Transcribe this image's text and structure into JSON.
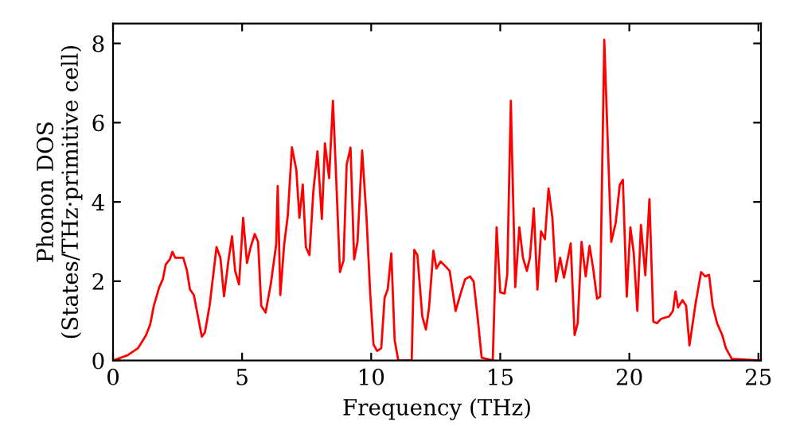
{
  "chart_data": {
    "type": "line",
    "xlabel": "Frequency (THz)",
    "ylabel": "Phonon DOS\n(States/THz·primitive cell)",
    "xlim": [
      0,
      25.1
    ],
    "ylim": [
      0,
      8.5
    ],
    "xticks": [
      0,
      5,
      10,
      15,
      20,
      25
    ],
    "yticks": [
      0,
      2,
      4,
      6,
      8
    ],
    "grid": false,
    "marker": "none",
    "line_style": "solid",
    "series": [
      {
        "color": "#ff0000",
        "x": [
          0,
          0.56,
          0.97,
          1.28,
          1.44,
          1.58,
          1.79,
          1.93,
          2.04,
          2.2,
          2.3,
          2.41,
          2.72,
          2.86,
          2.98,
          3.13,
          3.27,
          3.44,
          3.56,
          3.74,
          4.01,
          4.16,
          4.3,
          4.47,
          4.61,
          4.73,
          4.88,
          5.04,
          5.19,
          5.33,
          5.49,
          5.62,
          5.74,
          5.91,
          6.11,
          6.32,
          6.38,
          6.48,
          6.63,
          6.77,
          6.93,
          7.1,
          7.22,
          7.35,
          7.47,
          7.61,
          7.76,
          7.92,
          8.09,
          8.21,
          8.37,
          8.52,
          8.64,
          8.79,
          8.93,
          9.05,
          9.2,
          9.34,
          9.47,
          9.65,
          9.82,
          9.96,
          10.09,
          10.23,
          10.39,
          10.52,
          10.64,
          10.78,
          10.91,
          11.05,
          11.57,
          11.67,
          11.79,
          11.98,
          12.12,
          12.24,
          12.41,
          12.53,
          12.69,
          12.9,
          13.04,
          13.27,
          13.48,
          13.64,
          13.83,
          13.97,
          14.13,
          14.28,
          14.71,
          14.86,
          15.0,
          15.17,
          15.27,
          15.41,
          15.58,
          15.74,
          15.88,
          16.03,
          16.15,
          16.3,
          16.44,
          16.58,
          16.73,
          16.87,
          17.02,
          17.16,
          17.32,
          17.47,
          17.73,
          17.88,
          18.0,
          18.15,
          18.31,
          18.46,
          18.6,
          18.75,
          18.87,
          19.03,
          19.18,
          19.3,
          19.47,
          19.63,
          19.75,
          19.9,
          20.04,
          20.17,
          20.31,
          20.45,
          20.62,
          20.78,
          20.93,
          21.07,
          21.23,
          21.54,
          21.69,
          21.79,
          21.89,
          22.06,
          22.2,
          22.33,
          22.57,
          22.78,
          22.94,
          23.09,
          23.23,
          23.4,
          23.6,
          23.74,
          23.97,
          25.1
        ],
        "values": [
          0,
          0.13,
          0.31,
          0.64,
          0.91,
          1.38,
          1.85,
          2.05,
          2.42,
          2.55,
          2.74,
          2.59,
          2.59,
          2.28,
          1.79,
          1.65,
          1.18,
          0.6,
          0.71,
          1.38,
          2.86,
          2.59,
          1.62,
          2.52,
          3.13,
          2.26,
          1.92,
          3.6,
          2.46,
          2.86,
          3.19,
          2.99,
          1.38,
          1.21,
          1.92,
          2.93,
          4.4,
          1.65,
          2.93,
          3.66,
          5.38,
          4.81,
          3.6,
          4.44,
          2.86,
          2.66,
          4.27,
          5.28,
          3.57,
          5.48,
          4.6,
          6.55,
          4.67,
          2.23,
          2.52,
          4.94,
          5.37,
          2.55,
          2.99,
          5.3,
          3.6,
          1.72,
          0.4,
          0.24,
          0.31,
          1.58,
          1.79,
          2.7,
          0.51,
          0,
          0,
          2.79,
          2.66,
          1.11,
          0.78,
          1.32,
          2.77,
          2.32,
          2.5,
          2.36,
          2.26,
          1.25,
          1.72,
          2.05,
          2.12,
          1.99,
          1.05,
          0.07,
          0,
          3.36,
          1.72,
          1.69,
          2.16,
          6.55,
          1.85,
          3.36,
          2.59,
          2.26,
          2.59,
          3.84,
          1.79,
          3.26,
          3.06,
          4.34,
          3.6,
          1.99,
          2.59,
          2.09,
          2.95,
          0.64,
          0.94,
          2.99,
          2.12,
          2.89,
          2.32,
          1.56,
          1.61,
          8.09,
          5.21,
          2.99,
          3.46,
          4.43,
          4.56,
          1.61,
          3.36,
          2.72,
          1.25,
          3.42,
          2.15,
          4.07,
          0.98,
          0.94,
          1.05,
          1.11,
          1.25,
          1.74,
          1.34,
          1.52,
          1.38,
          0.38,
          1.45,
          2.23,
          2.12,
          2.16,
          1.38,
          0.94,
          0.64,
          0.31,
          0.04,
          0
        ]
      }
    ]
  }
}
